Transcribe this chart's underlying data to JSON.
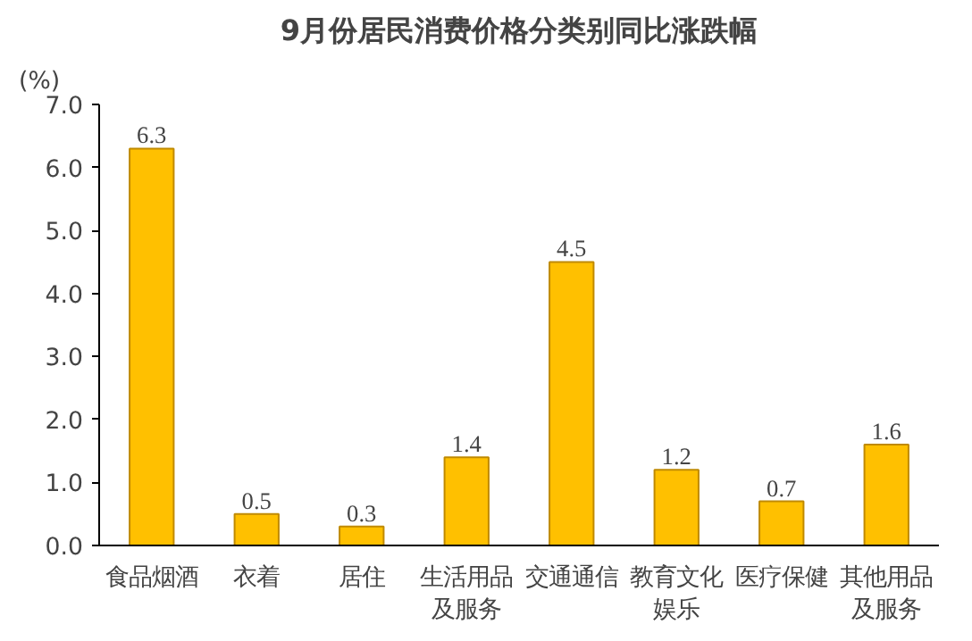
{
  "chart_data": {
    "type": "bar",
    "title": "9月份居民消费价格分类别同比涨跌幅",
    "ylabel": "(%)",
    "categories": [
      "食品烟酒",
      "衣着",
      "居住",
      "生活用品及服务",
      "交通通信",
      "教育文化娱乐",
      "医疗保健",
      "其他用品及服务"
    ],
    "values": [
      6.3,
      0.5,
      0.3,
      1.4,
      4.5,
      1.2,
      0.7,
      1.6
    ],
    "color": "#ffc000",
    "ylim": [
      0,
      7
    ],
    "yticks": [
      {
        "value": 0,
        "label": "0.0"
      },
      {
        "value": 1,
        "label": "1.0"
      },
      {
        "value": 2,
        "label": "2.0"
      },
      {
        "value": 3,
        "label": "3.0"
      },
      {
        "value": 4,
        "label": "4.0"
      },
      {
        "value": 5,
        "label": "5.0"
      },
      {
        "value": 6,
        "label": "6.0"
      },
      {
        "value": 7,
        "label": "7.0"
      }
    ],
    "data_labels": true,
    "grid": false
  }
}
